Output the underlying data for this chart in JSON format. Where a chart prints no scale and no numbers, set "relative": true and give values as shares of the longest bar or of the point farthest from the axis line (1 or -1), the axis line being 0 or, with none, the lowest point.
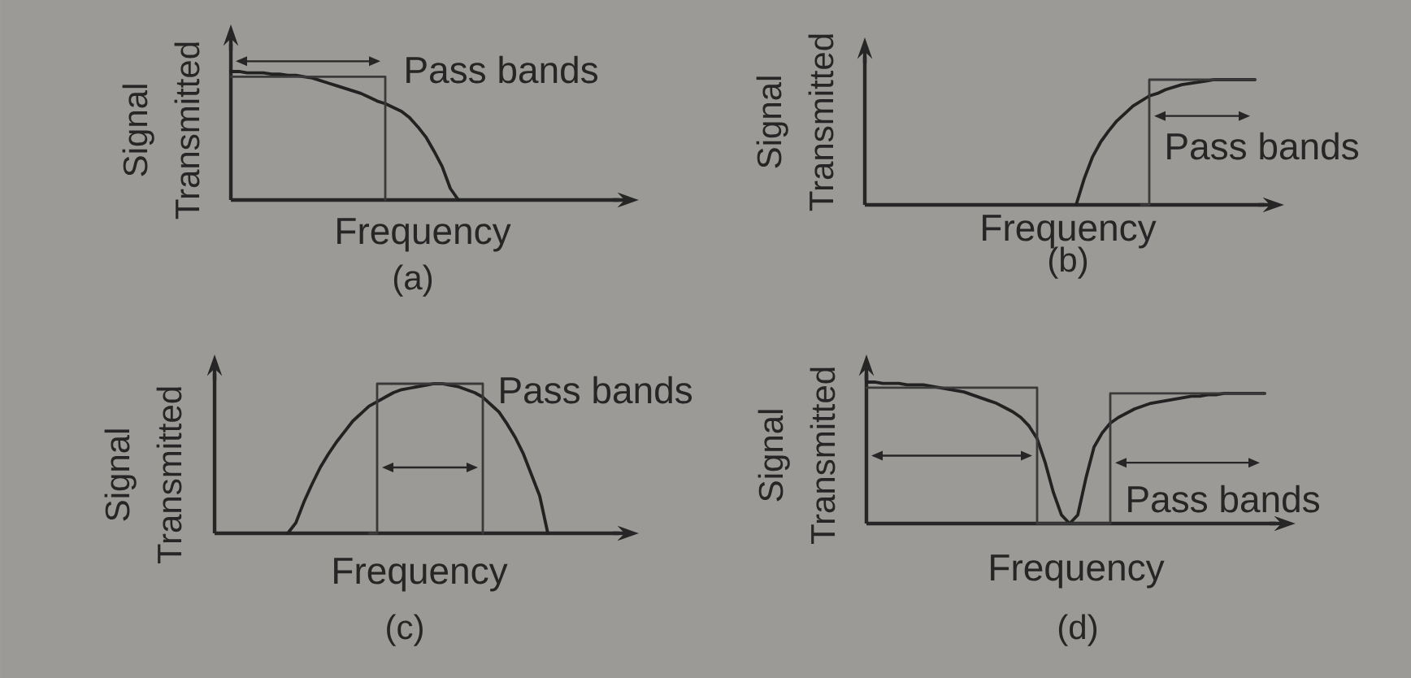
{
  "chart_data": [
    {
      "type": "line",
      "title": "(a)",
      "xlabel": "Frequency",
      "ylabel": "Signal Transmitted",
      "relative": true,
      "annotations": [
        "Pass bands"
      ],
      "categories": [
        null,
        null,
        null,
        null,
        null,
        null,
        null,
        null,
        null,
        null,
        null,
        null,
        null,
        null,
        null,
        null,
        null,
        null,
        null,
        null,
        null,
        null,
        null,
        null,
        null,
        null,
        null,
        null,
        null
      ],
      "series": [
        {
          "color": "#222222",
          "values": [
            1,
            1,
            0.99,
            0.99,
            0.99,
            0.98,
            0.98,
            0.97,
            0.97,
            0.96,
            0.95,
            0.93,
            0.91,
            0.89,
            0.87,
            0.85,
            0.83,
            0.8,
            0.77,
            0.75,
            0.72,
            0.69,
            0.64,
            0.57,
            0.49,
            0.38,
            0.26,
            0.09,
            0
          ]
        },
        {
          "type": "step",
          "color": "#3a3a3a",
          "values": [
            0.96,
            0.96,
            0.96,
            0.96,
            0.96,
            0.96,
            0.96,
            0.96,
            0.96,
            0.96,
            0.96,
            0.96,
            0.96,
            0.96,
            0.96,
            0.96,
            0.96,
            0.96,
            0.96,
            0,
            null,
            null,
            null,
            null,
            null,
            null,
            null,
            null,
            null
          ]
        }
      ]
    },
    {
      "type": "line",
      "title": "(b)",
      "xlabel": "Frequency",
      "ylabel": "Signal Transmitted",
      "relative": true,
      "annotations": [
        "Pass bands"
      ],
      "categories": [
        null,
        null,
        null,
        null,
        null,
        null,
        null,
        null,
        null,
        null,
        null,
        null,
        null,
        null,
        null,
        null,
        null,
        null,
        null,
        null,
        null,
        null,
        null,
        null,
        null,
        null,
        null,
        null,
        null,
        null,
        null,
        null,
        null,
        null,
        null,
        null,
        null,
        null,
        null,
        null,
        null,
        null,
        null,
        null,
        null,
        null,
        null,
        null,
        null
      ],
      "series": [
        {
          "color": "#222222",
          "values": [
            null,
            null,
            null,
            null,
            null,
            null,
            null,
            null,
            null,
            null,
            null,
            null,
            null,
            null,
            null,
            null,
            null,
            null,
            null,
            null,
            null,
            null,
            null,
            null,
            null,
            null,
            0,
            0.21,
            0.38,
            0.5,
            0.59,
            0.67,
            0.73,
            0.79,
            0.83,
            0.87,
            0.89,
            0.92,
            0.94,
            0.96,
            0.97,
            0.98,
            0.99,
            1,
            1,
            1,
            1,
            1,
            1
          ]
        },
        {
          "type": "step",
          "color": "#3a3a3a",
          "values": [
            null,
            null,
            null,
            null,
            null,
            null,
            null,
            null,
            null,
            null,
            null,
            null,
            null,
            null,
            null,
            null,
            null,
            null,
            null,
            null,
            null,
            null,
            null,
            null,
            null,
            null,
            null,
            null,
            null,
            null,
            null,
            null,
            null,
            null,
            0,
            1,
            1,
            1,
            1,
            1,
            1,
            1,
            1,
            1,
            1,
            1,
            1,
            1,
            1
          ]
        }
      ]
    },
    {
      "type": "line",
      "title": "(c)",
      "xlabel": "Frequency",
      "ylabel": "Signal Transmitted",
      "relative": true,
      "annotations": [
        "Pass bands"
      ],
      "categories": [
        null,
        null,
        null,
        null,
        null,
        null,
        null,
        null,
        null,
        null,
        null,
        null,
        null,
        null,
        null,
        null,
        null,
        null,
        null,
        null,
        null,
        null,
        null,
        null,
        null,
        null,
        null,
        null,
        null,
        null,
        null,
        null,
        null,
        null,
        null,
        null,
        null,
        null,
        null,
        null,
        null,
        null
      ],
      "series": [
        {
          "color": "#222222",
          "values": [
            null,
            null,
            null,
            null,
            null,
            null,
            null,
            null,
            null,
            0,
            0.07,
            0.21,
            0.33,
            0.44,
            0.53,
            0.61,
            0.68,
            0.75,
            0.8,
            0.85,
            0.88,
            0.91,
            0.94,
            0.96,
            0.97,
            0.98,
            0.99,
            1,
            1,
            0.99,
            0.98,
            0.96,
            0.94,
            0.91,
            0.86,
            0.81,
            0.73,
            0.64,
            0.53,
            0.39,
            0.25,
            0
          ]
        },
        {
          "type": "step",
          "color": "#3a3a3a",
          "values": [
            null,
            null,
            null,
            null,
            null,
            null,
            null,
            null,
            null,
            null,
            null,
            null,
            null,
            null,
            null,
            null,
            null,
            null,
            null,
            0,
            1,
            1,
            1,
            1,
            1,
            1,
            1,
            1,
            1,
            1,
            1,
            1,
            1,
            0,
            null,
            null,
            null,
            null,
            null,
            null,
            null,
            null
          ]
        }
      ]
    },
    {
      "type": "line",
      "title": "(d)",
      "xlabel": "Frequency",
      "ylabel": "Signal Transmitted",
      "relative": true,
      "annotations": [
        "Pass bands"
      ],
      "categories": [
        null,
        null,
        null,
        null,
        null,
        null,
        null,
        null,
        null,
        null,
        null,
        null,
        null,
        null,
        null,
        null,
        null,
        null,
        null,
        null,
        null,
        null,
        null,
        null,
        null,
        null,
        null,
        null,
        null,
        null,
        null,
        null,
        null,
        null,
        null,
        null,
        null,
        null,
        null,
        null,
        null,
        null,
        null,
        null,
        null,
        null,
        null,
        null,
        null,
        null
      ],
      "series": [
        {
          "color": "#222222",
          "values": [
            1,
            1,
            0.99,
            0.99,
            0.99,
            0.98,
            0.98,
            0.98,
            0.97,
            0.96,
            0.95,
            0.94,
            0.93,
            0.91,
            0.89,
            0.87,
            0.85,
            0.82,
            0.79,
            0.75,
            0.69,
            0.6,
            0.43,
            0.22,
            0.06,
            0,
            0.06,
            0.32,
            0.54,
            0.64,
            0.71,
            0.75,
            0.78,
            0.81,
            0.83,
            0.85,
            0.86,
            0.87,
            0.88,
            0.89,
            0.9,
            0.9,
            0.91,
            0.91,
            0.92,
            0.92,
            0.92,
            0.92,
            0.92,
            0.92
          ]
        },
        {
          "type": "step",
          "color": "#3a3a3a",
          "values": [
            0.96,
            0.96,
            0.96,
            0.96,
            0.96,
            0.96,
            0.96,
            0.96,
            0.96,
            0.96,
            0.96,
            0.96,
            0.96,
            0.96,
            0.96,
            0.96,
            0.96,
            0.96,
            0.96,
            0.96,
            0.96,
            0,
            0,
            0,
            0,
            0,
            0,
            0,
            0,
            0,
            0.92,
            0.92,
            0.92,
            0.92,
            0.92,
            0.92,
            0.92,
            0.92,
            0.92,
            0.92,
            0.92,
            0.92,
            0.92,
            0.92,
            0.92,
            0.92,
            0.92,
            0.92,
            0.92,
            0.92
          ]
        }
      ]
    }
  ]
}
